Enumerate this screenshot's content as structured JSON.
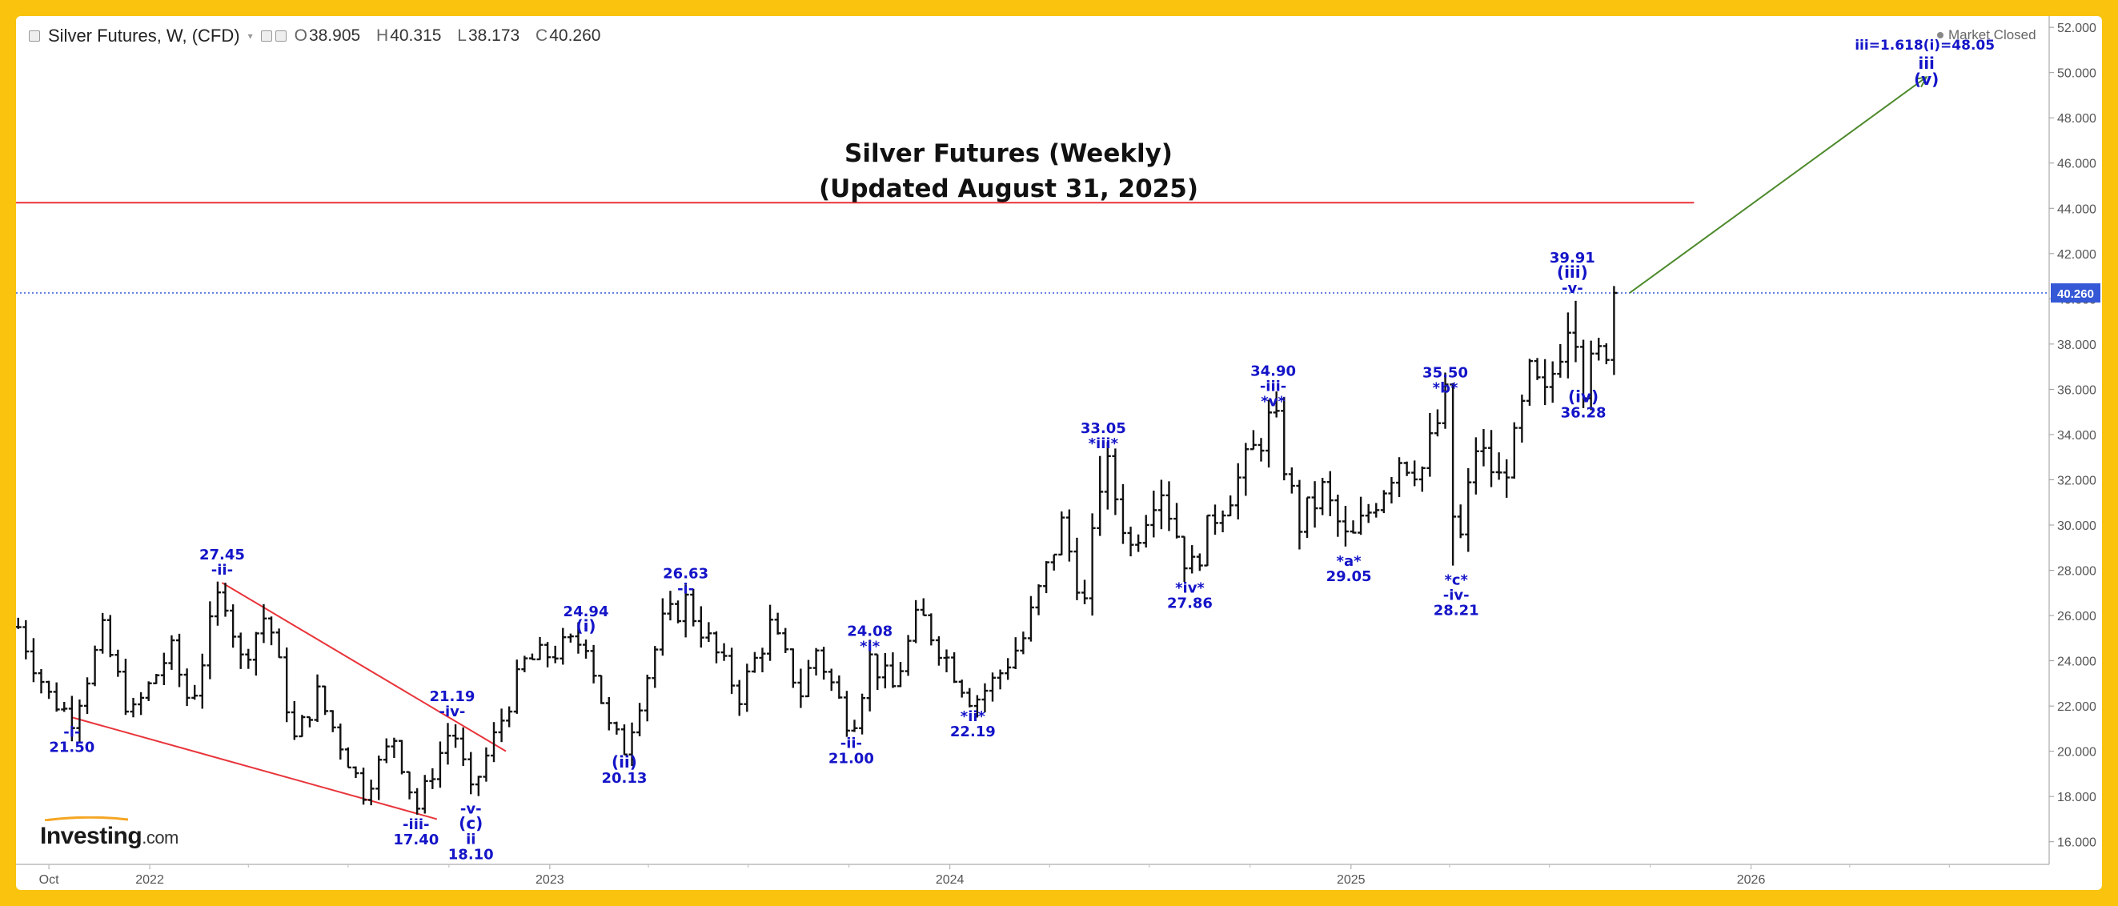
{
  "header": {
    "symbol": "Silver Futures, W, (CFD)",
    "open_label": "O",
    "open": "38.905",
    "high_label": "H",
    "high": "40.315",
    "low_label": "L",
    "low": "38.173",
    "close_label": "C",
    "close": "40.260"
  },
  "status": "Market Closed",
  "logo": {
    "name": "Investing",
    "suffix": ".com"
  },
  "colors": {
    "wave_label": "#1414c8",
    "price_bar": "#111111",
    "resistance": "#e8343a",
    "wedge": "#e8343a",
    "projection": "#4d8a2c",
    "price_line": "#3558d6",
    "price_tag": "#3558d6",
    "border": "#f9c30e"
  },
  "chart_data": {
    "type": "ohlc",
    "title": "Silver Futures (Weekly)",
    "subtitle": "(Updated August 31, 2025)",
    "ylim": [
      15,
      52.5
    ],
    "y_ticks": [
      16,
      18,
      20,
      22,
      24,
      26,
      28,
      30,
      32,
      34,
      36,
      38,
      40,
      42,
      44,
      46,
      48,
      50,
      52
    ],
    "y_tick_labels": [
      "16.000",
      "18.000",
      "20.000",
      "22.000",
      "24.000",
      "26.000",
      "28.000",
      "30.000",
      "32.000",
      "34.000",
      "36.000",
      "38.000",
      "40.000",
      "42.000",
      "44.000",
      "46.000",
      "48.000",
      "50.000",
      "52.000"
    ],
    "x_range": [
      "2021-09-01",
      "2026-09-30"
    ],
    "x_ticks": [
      {
        "date": "2021-10-01",
        "label": "Oct"
      },
      {
        "date": "2022-01-01",
        "label": "2022"
      },
      {
        "date": "2023-01-01",
        "label": "2023"
      },
      {
        "date": "2024-01-01",
        "label": "2024"
      },
      {
        "date": "2025-01-01",
        "label": "2025"
      },
      {
        "date": "2026-01-01",
        "label": "2026"
      }
    ],
    "last_price": 40.26,
    "last_price_label": "40.260",
    "resistance_level": 44.25,
    "resistance_end": "2025-11-10",
    "wedge_lower": [
      {
        "date": "2021-10-22",
        "price": 21.5
      },
      {
        "date": "2022-09-20",
        "price": 17.0
      }
    ],
    "wedge_upper": [
      {
        "date": "2022-03-08",
        "price": 27.45
      },
      {
        "date": "2022-11-22",
        "price": 20.0
      }
    ],
    "projection": [
      {
        "date": "2025-09-05",
        "price": 40.26
      },
      {
        "date": "2026-06-10",
        "price": 49.8
      }
    ],
    "swing_points": [
      {
        "date": "2021-09-03",
        "price": 25.5
      },
      {
        "date": "2021-09-30",
        "price": 22.5
      },
      {
        "date": "2021-10-22",
        "price": 21.5
      },
      {
        "date": "2021-11-19",
        "price": 25.2
      },
      {
        "date": "2021-12-15",
        "price": 21.5
      },
      {
        "date": "2022-01-20",
        "price": 24.5
      },
      {
        "date": "2022-02-07",
        "price": 22.0
      },
      {
        "date": "2022-03-08",
        "price": 27.45
      },
      {
        "date": "2022-03-25",
        "price": 24.0
      },
      {
        "date": "2022-04-18",
        "price": 26.2
      },
      {
        "date": "2022-05-13",
        "price": 20.5
      },
      {
        "date": "2022-06-03",
        "price": 22.5
      },
      {
        "date": "2022-07-15",
        "price": 18.2
      },
      {
        "date": "2022-08-12",
        "price": 20.6
      },
      {
        "date": "2022-09-01",
        "price": 17.4
      },
      {
        "date": "2022-10-04",
        "price": 21.19
      },
      {
        "date": "2022-10-21",
        "price": 18.1
      },
      {
        "date": "2022-12-09",
        "price": 23.9
      },
      {
        "date": "2023-02-03",
        "price": 24.94
      },
      {
        "date": "2023-02-24",
        "price": 21.0
      },
      {
        "date": "2023-03-10",
        "price": 20.13
      },
      {
        "date": "2023-04-14",
        "price": 25.6
      },
      {
        "date": "2023-05-05",
        "price": 26.63
      },
      {
        "date": "2023-06-23",
        "price": 22.5
      },
      {
        "date": "2023-07-21",
        "price": 25.5
      },
      {
        "date": "2023-08-18",
        "price": 22.6
      },
      {
        "date": "2023-09-01",
        "price": 24.5
      },
      {
        "date": "2023-10-03",
        "price": 21.0
      },
      {
        "date": "2023-10-20",
        "price": 24.08
      },
      {
        "date": "2023-11-10",
        "price": 22.8
      },
      {
        "date": "2023-12-04",
        "price": 26.1
      },
      {
        "date": "2024-01-22",
        "price": 22.19
      },
      {
        "date": "2024-02-12",
        "price": 23.2
      },
      {
        "date": "2024-03-08",
        "price": 25.0
      },
      {
        "date": "2024-04-12",
        "price": 30.0
      },
      {
        "date": "2024-05-03",
        "price": 26.5
      },
      {
        "date": "2024-05-20",
        "price": 33.05
      },
      {
        "date": "2024-06-14",
        "price": 29.0
      },
      {
        "date": "2024-07-10",
        "price": 32.0
      },
      {
        "date": "2024-08-07",
        "price": 27.86
      },
      {
        "date": "2024-08-30",
        "price": 30.5
      },
      {
        "date": "2024-09-20",
        "price": 32.0
      },
      {
        "date": "2024-10-22",
        "price": 34.9
      },
      {
        "date": "2024-11-14",
        "price": 30.0
      },
      {
        "date": "2024-12-06",
        "price": 31.5
      },
      {
        "date": "2024-12-30",
        "price": 29.05
      },
      {
        "date": "2025-02-14",
        "price": 33.0
      },
      {
        "date": "2025-03-07",
        "price": 32.5
      },
      {
        "date": "2025-03-28",
        "price": 35.5
      },
      {
        "date": "2025-04-07",
        "price": 28.21
      },
      {
        "date": "2025-04-25",
        "price": 33.5
      },
      {
        "date": "2025-05-16",
        "price": 32.0
      },
      {
        "date": "2025-05-30",
        "price": 33.5
      },
      {
        "date": "2025-06-13",
        "price": 36.5
      },
      {
        "date": "2025-06-27",
        "price": 35.5
      },
      {
        "date": "2025-07-22",
        "price": 39.91
      },
      {
        "date": "2025-08-01",
        "price": 36.28
      },
      {
        "date": "2025-08-22",
        "price": 38.0
      },
      {
        "date": "2025-08-29",
        "price": 40.26
      }
    ],
    "annotations": [
      {
        "date": "2021-10-22",
        "price": 21.5,
        "pos": "below",
        "lines": [
          "-i-",
          "21.50"
        ]
      },
      {
        "date": "2022-03-08",
        "price": 27.45,
        "pos": "above",
        "lines": [
          "27.45",
          "-ii-"
        ]
      },
      {
        "date": "2022-09-01",
        "price": 17.4,
        "pos": "below",
        "lines": [
          "-iii-",
          "17.40"
        ]
      },
      {
        "date": "2022-10-04",
        "price": 21.19,
        "pos": "above",
        "lines": [
          "21.19",
          "-iv-"
        ]
      },
      {
        "date": "2022-10-21",
        "price": 18.1,
        "pos": "below",
        "lines": [
          "-v-",
          "(c)",
          "ii",
          "18.10"
        ]
      },
      {
        "date": "2023-02-03",
        "price": 24.94,
        "pos": "above",
        "lines": [
          "24.94",
          "(i)"
        ]
      },
      {
        "date": "2023-03-10",
        "price": 20.13,
        "pos": "below",
        "lines": [
          "(ii)",
          "20.13"
        ]
      },
      {
        "date": "2023-05-05",
        "price": 26.63,
        "pos": "above",
        "lines": [
          "26.63",
          "-i-"
        ]
      },
      {
        "date": "2023-10-03",
        "price": 21.0,
        "pos": "below",
        "lines": [
          "-ii-",
          "21.00"
        ]
      },
      {
        "date": "2023-10-20",
        "price": 24.08,
        "pos": "above",
        "lines": [
          "24.08",
          "*i*"
        ]
      },
      {
        "date": "2024-01-22",
        "price": 22.19,
        "pos": "below",
        "lines": [
          "*ii*",
          "22.19"
        ]
      },
      {
        "date": "2024-05-20",
        "price": 33.05,
        "pos": "above",
        "lines": [
          "33.05",
          "*iii*"
        ]
      },
      {
        "date": "2024-08-07",
        "price": 27.86,
        "pos": "below",
        "lines": [
          "*iv*",
          "27.86"
        ]
      },
      {
        "date": "2024-10-22",
        "price": 34.9,
        "pos": "above",
        "lines": [
          "34.90",
          "-iii-",
          "*v*"
        ]
      },
      {
        "date": "2024-12-30",
        "price": 29.05,
        "pos": "below",
        "lines": [
          "*a*",
          "29.05"
        ]
      },
      {
        "date": "2025-03-28",
        "price": 35.5,
        "pos": "above",
        "lines": [
          "35.50",
          "*b*"
        ]
      },
      {
        "date": "2025-04-07",
        "price": 28.21,
        "pos": "below",
        "lines": [
          "*c*",
          "-iv-",
          "28.21"
        ]
      },
      {
        "date": "2025-07-22",
        "price": 39.91,
        "pos": "above",
        "lines": [
          "39.91",
          "(iii)",
          "-v-"
        ]
      },
      {
        "date": "2025-08-01",
        "price": 36.28,
        "pos": "below",
        "lines": [
          "(iv)",
          "36.28"
        ]
      }
    ],
    "target_annotation": {
      "date": "2026-06-10",
      "price": 49.8,
      "lines": [
        "iii=1.618(i)=48.05",
        "iii",
        "(v)"
      ]
    }
  }
}
